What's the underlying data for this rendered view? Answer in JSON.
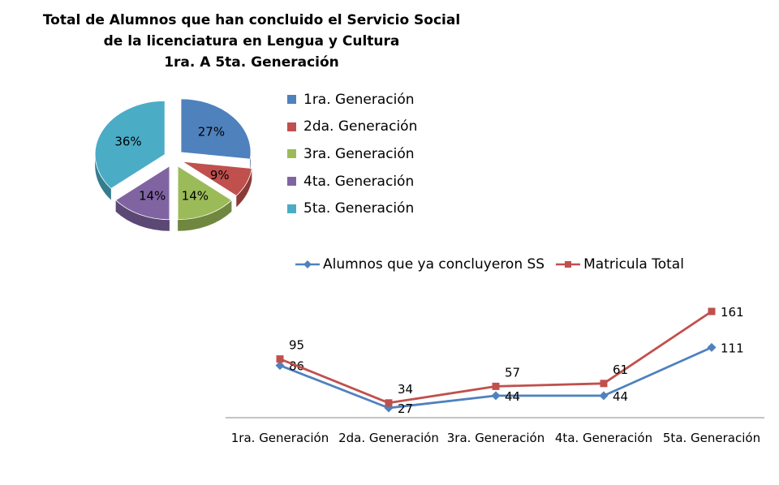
{
  "chart_data": [
    {
      "type": "pie",
      "title_lines": [
        "Total de Alumnos que han concluido el Servicio Social",
        "de la licenciatura en Lengua y Cultura",
        "1ra. A 5ta. Generación"
      ],
      "categories": [
        "1ra. Generación",
        "2da. Generación",
        "3ra. Generación",
        "4ta. Generación",
        "5ta. Generación"
      ],
      "values": [
        27,
        9,
        14,
        14,
        36
      ],
      "labels": [
        "27%",
        "9%",
        "14%",
        "14%",
        "36%"
      ],
      "colors": [
        "#4F81BD",
        "#C0504D",
        "#9BBB59",
        "#8064A2",
        "#4BACC6"
      ],
      "legend_position": "right"
    },
    {
      "type": "line",
      "categories": [
        "1ra. Generación",
        "2da. Generación",
        "3ra. Generación",
        "4ta. Generación",
        "5ta. Generación"
      ],
      "series": [
        {
          "name": "Alumnos que ya concluyeron SS",
          "values": [
            86,
            27,
            44,
            44,
            111
          ],
          "color": "#4F81BD",
          "marker": "diamond"
        },
        {
          "name": "Matricula Total",
          "values": [
            95,
            34,
            57,
            61,
            161
          ],
          "color": "#C0504D",
          "marker": "square"
        }
      ],
      "legend_position": "top",
      "grid": false,
      "ylim": [
        27,
        161
      ]
    }
  ]
}
